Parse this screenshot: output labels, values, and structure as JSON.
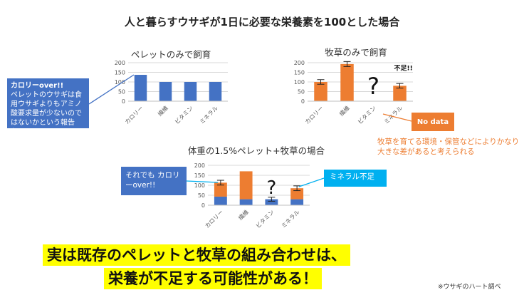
{
  "title": "人と暮らすウサギが1日に必要な栄養素を100とした場合",
  "colors": {
    "blue": "#4472c4",
    "orange": "#ed7d31",
    "cyan": "#00b0f0",
    "yellow": "#ffff00"
  },
  "chart_data": [
    {
      "type": "bar",
      "title": "ペレットのみで飼育",
      "categories": [
        "カロリー",
        "繊維",
        "ビタミン",
        "ミネラル"
      ],
      "ylim": [
        0,
        200
      ],
      "yticks": [
        0,
        50,
        100,
        150,
        200
      ],
      "series": [
        {
          "values": [
            137,
            100,
            100,
            100
          ],
          "color": "#4472c4"
        }
      ]
    },
    {
      "type": "bar",
      "title": "牧草のみで飼育",
      "categories": [
        "カロリー",
        "繊維",
        "ビタミン",
        "ミネラル"
      ],
      "ylim": [
        0,
        200
      ],
      "yticks": [
        0,
        50,
        100,
        150,
        200
      ],
      "series": [
        {
          "values": [
            100,
            193,
            null,
            80
          ],
          "errors": [
            12,
            13,
            null,
            12
          ],
          "color": "#ed7d31"
        }
      ],
      "annotations": [
        {
          "category": "ビタミン",
          "text": "?"
        },
        {
          "category": "ミネラル",
          "text": "不足!!"
        }
      ]
    },
    {
      "type": "bar",
      "title": "体重の1.5%ペレット+牧草の場合",
      "categories": [
        "カロリー",
        "繊維",
        "ビタミン",
        "ミネラル"
      ],
      "ylim": [
        0,
        200
      ],
      "yticks": [
        0,
        50,
        100,
        150,
        200
      ],
      "stacked": true,
      "series": [
        {
          "values": [
            43,
            30,
            30,
            30
          ],
          "color": "#4472c4"
        },
        {
          "values": [
            70,
            140,
            null,
            55
          ],
          "errors": [
            12,
            null,
            10,
            12
          ],
          "color": "#ed7d31"
        }
      ],
      "annotations": [
        {
          "category": "ビタミン",
          "text": "?"
        }
      ]
    }
  ],
  "callouts": {
    "pellet": {
      "heading": "カロリーover!!",
      "body": "ペレットのウサギは食用ウサギよりもアミノ酸要求量が少ないのではないかという報告も…"
    },
    "nodata": "No data",
    "hay_note": "牧草を育てる環境・保管などによりかなり大きな差があると考えられる",
    "mixed_calorie": "それでも カロリーover!!",
    "mixed_mineral": "ミネラル不足"
  },
  "banner": {
    "line1": "実は既存のペレットと牧草の組み合わせは、",
    "line2": "栄養が不足する可能性がある！"
  },
  "source": "※ウサギのハート調べ"
}
